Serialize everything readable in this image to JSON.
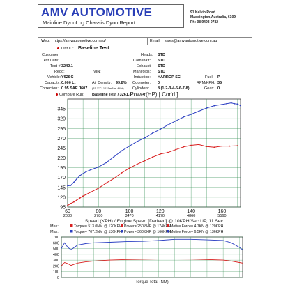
{
  "header": {
    "logo_title": "AMV AUTOMOTIVE",
    "logo_subtitle": "Mainline DynoLog Chassis Dyno Report",
    "address_lines": [
      "91 Kelvin Road",
      "Maddington,Australia, 6109",
      "Ph: 08 9493 0782"
    ],
    "web_label": "Web:",
    "web": "https://amvautomotive.com.au/",
    "email_label": "Email:",
    "email": "sales@amvautomotive.com.au"
  },
  "info": {
    "test_id_label": "Test ID:",
    "test_id_value": "Baseline Test",
    "customer_label": "Customer:",
    "test_date_label": "Test Date:",
    "test_no_label": "Test #:",
    "test_no_value": "3242.1",
    "rego_label": "Rego:",
    "vin_label": "VIN:",
    "vehicle_label": "Vehicle:",
    "vehicle_value": "Y62SC",
    "capacity_label": "Capacity:",
    "capacity_value": "0.000 Lt",
    "air_density_label": "Air Density:",
    "air_density_value": "99.8%",
    "air_density_note": "(15.1°C, 1015mBar, 44%)",
    "correction_label": "Correction:",
    "correction_value": "0.95 SAE J607",
    "compare_label": "Compare Run:",
    "compare_value": "Baseline Test / 3261.3",
    "heads_label": "Heads:",
    "heads_value": "STD",
    "camshaft_label": "Camshaft:",
    "camshaft_value": "STD",
    "exhaust_label": "Exhaust:",
    "exhaust_value": "STD",
    "manifolds_label": "Manifolds:",
    "manifolds_value": "STD",
    "induction_label": "Induction:",
    "induction_value": "HARROP SC",
    "odometer_label": "Odometer:",
    "odometer_value": "0",
    "cylinders_label": "Cylinders:",
    "cylinders_value": "8 (1-2-3-4-5-6-7-8)",
    "fuel_label": "Fuel:",
    "fuel_value": "P",
    "rpm_kph_label": "RPM/KPH:",
    "rpm_kph_value": "35",
    "gear_label": "Gear:",
    "gear_value": "0"
  },
  "chart_data": [
    {
      "type": "line",
      "title": "Power(HP)     [ Cor'd ]",
      "xlabel": "Speed (KPH) / Engine Speed [Derived] @ 10KPH/Sec UP, 11 Sec",
      "x_ticks_kph": [
        60,
        80,
        100,
        120,
        140,
        160
      ],
      "x_ticks_rpm": [
        2080,
        2780,
        3470,
        4170,
        4860,
        5560
      ],
      "xlim": [
        60,
        172
      ],
      "ylim": [
        95,
        370
      ],
      "y_ticks": [
        95,
        120,
        145,
        170,
        195,
        220,
        245,
        270,
        295,
        320,
        345
      ],
      "grid": true,
      "series": [
        {
          "color": "#2b3fc2",
          "x": [
            60,
            62,
            64,
            66,
            68,
            70,
            72,
            75,
            80,
            85,
            90,
            95,
            100,
            105,
            110,
            115,
            120,
            125,
            130,
            135,
            140,
            145,
            150,
            155,
            160,
            163,
            166,
            168,
            170,
            172
          ],
          "y": [
            149,
            150,
            158,
            167,
            175,
            180,
            185,
            190,
            197,
            208,
            223,
            238,
            250,
            262,
            271,
            283,
            293,
            304,
            314,
            324,
            331,
            339,
            347,
            353,
            356,
            358,
            360,
            358,
            357,
            353
          ]
        },
        {
          "color": "#d92020",
          "x": [
            60,
            62,
            64,
            66,
            68,
            70,
            72,
            75,
            80,
            85,
            90,
            95,
            100,
            105,
            110,
            115,
            120,
            125,
            130,
            135,
            140,
            145,
            150,
            155,
            160,
            165,
            170
          ],
          "y": [
            99,
            104,
            108,
            113,
            118,
            123,
            127,
            133,
            143,
            156,
            168,
            182,
            194,
            204,
            213,
            222,
            230,
            234,
            241,
            248,
            252,
            254,
            249,
            247,
            250,
            250,
            251
          ]
        }
      ]
    },
    {
      "type": "line",
      "title": "",
      "xlabel": "Torque Total (NM)",
      "xlim": [
        60,
        172
      ],
      "ylim": [
        0,
        700
      ],
      "y_ticks": [
        0,
        100,
        200,
        300,
        400,
        500,
        600,
        700
      ],
      "grid": true,
      "series": [
        {
          "color": "#2b3fc2",
          "x": [
            60,
            62,
            64,
            66,
            68,
            70,
            75,
            80,
            90,
            100,
            110,
            120,
            130,
            140,
            150,
            160,
            165,
            170,
            172
          ],
          "y": [
            500,
            600,
            520,
            480,
            520,
            560,
            585,
            600,
            610,
            620,
            625,
            640,
            660,
            660,
            650,
            640,
            600,
            520,
            480
          ]
        },
        {
          "color": "#d92020",
          "x": [
            60,
            62,
            64,
            66,
            68,
            70,
            75,
            80,
            90,
            100,
            110,
            120,
            130,
            140,
            150,
            160,
            165,
            170,
            172
          ],
          "y": [
            200,
            260,
            240,
            210,
            230,
            250,
            270,
            285,
            300,
            310,
            315,
            320,
            320,
            318,
            310,
            300,
            285,
            260,
            250
          ]
        }
      ]
    }
  ],
  "max_rows": [
    {
      "label": "Max:",
      "items": [
        {
          "color": "#d92020",
          "text": "Torque= 513.0NM @ 120KPH"
        },
        {
          "color": "#d92020",
          "text": "Power= 250.8HP @ 174KPH"
        },
        {
          "color": "#d92020",
          "text": "Motive Force= 4.7KN @ 120KPH"
        }
      ]
    },
    {
      "label": "Max:",
      "items": [
        {
          "color": "#2b3fc2",
          "text": "Torque= 707.2NM @ 136KPH"
        },
        {
          "color": "#2b3fc2",
          "text": "Power= 360.8HP @ 166KPH"
        },
        {
          "color": "#2b3fc2",
          "text": "Motive Force= 6.5KN @ 136KPH"
        }
      ]
    }
  ]
}
